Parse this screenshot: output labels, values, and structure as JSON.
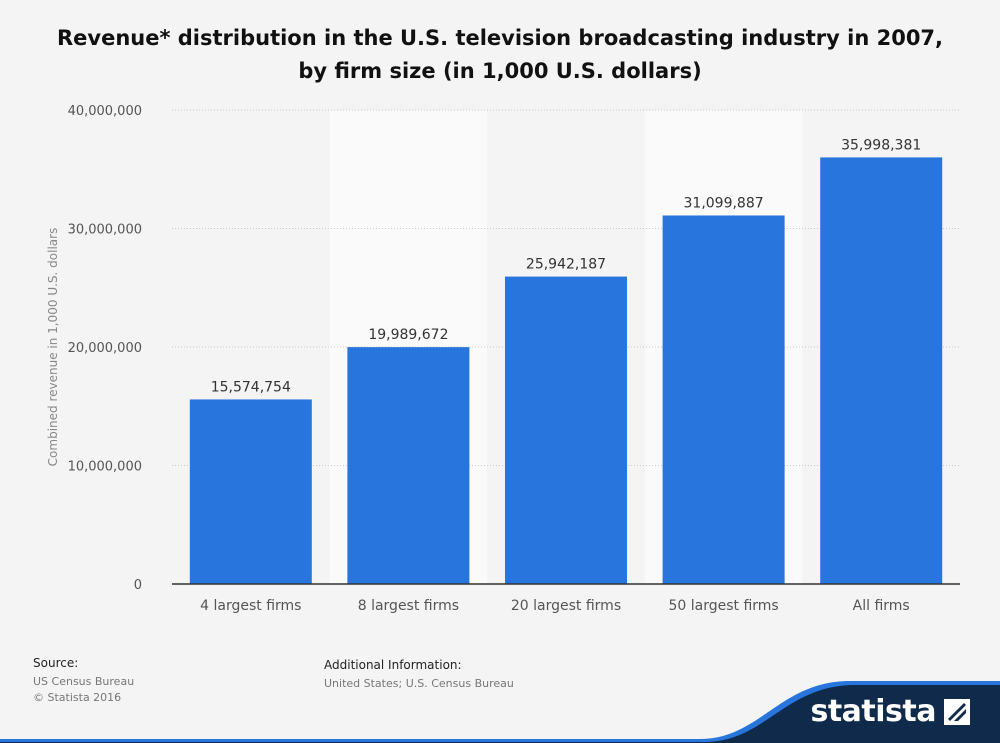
{
  "title": "Revenue* distribution in the U.S. television broadcasting industry in 2007, by firm size (in 1,000 U.S. dollars)",
  "chart_data": {
    "type": "bar",
    "categories": [
      "4 largest firms",
      "8 largest firms",
      "20 largest firms",
      "50 largest firms",
      "All firms"
    ],
    "values": [
      15574754,
      19989672,
      25942187,
      31099887,
      35998381
    ],
    "value_labels": [
      "15,574,754",
      "19,989,672",
      "25,942,187",
      "31,099,887",
      "35,998,381"
    ],
    "ylabel": "Combined revenue in 1,000 U.S. dollars",
    "xlabel": "",
    "ylim": [
      0,
      40000000
    ],
    "yticks": [
      0,
      10000000,
      20000000,
      30000000,
      40000000
    ],
    "ytick_labels": [
      "0",
      "10,000,000",
      "20,000,000",
      "30,000,000",
      "40,000,000"
    ],
    "grid": true,
    "bar_color": "#2876dd"
  },
  "footer": {
    "source_heading": "Source:",
    "source_lines": [
      "US Census Bureau",
      "© Statista 2016"
    ],
    "additional_heading": "Additional Information:",
    "additional_text": "United States; U.S. Census Bureau"
  },
  "brand": {
    "name": "statista",
    "band_color": "#0f2a4a",
    "accent_color": "#2876dd"
  }
}
